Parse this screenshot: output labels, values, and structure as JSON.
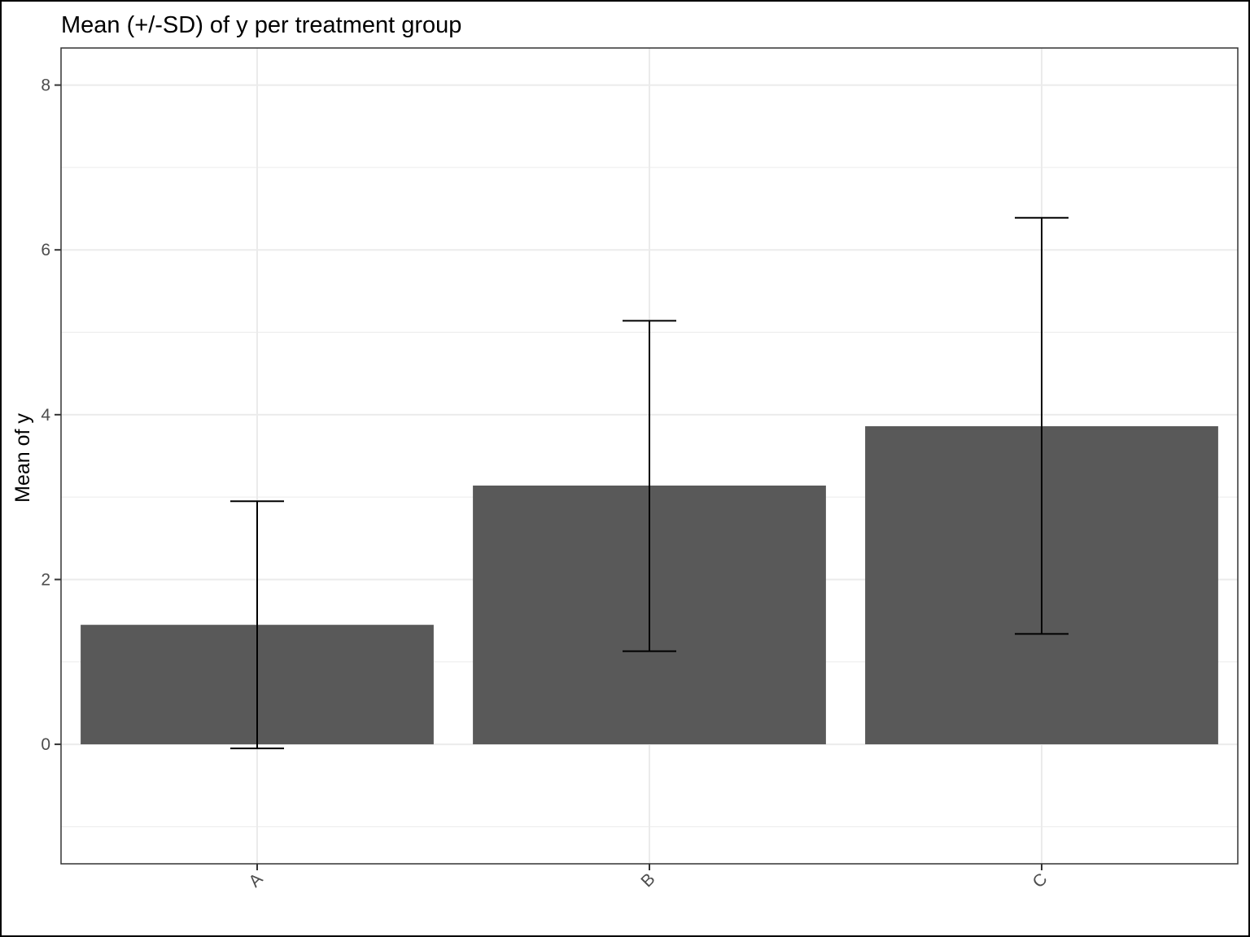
{
  "chart_data": {
    "type": "bar",
    "title": "Mean (+/-SD) of y per treatment group",
    "xlabel": "",
    "ylabel": "Mean of y",
    "categories": [
      "A",
      "B",
      "C"
    ],
    "values": [
      1.45,
      3.14,
      3.86
    ],
    "error_bars": {
      "lower": [
        -0.05,
        1.13,
        1.34
      ],
      "upper": [
        2.95,
        5.14,
        6.39
      ]
    },
    "ylim": [
      -1.45,
      8.45
    ],
    "yticks": [
      0,
      2,
      4,
      6,
      8
    ],
    "ytick_labels": [
      "0",
      "2",
      "4",
      "6",
      "8"
    ],
    "grid": true,
    "colors": {
      "bar": "#595959",
      "errorbar": "#000000",
      "grid": "#ebebeb",
      "panel_border": "#333333",
      "tick_text": "#4d4d4d"
    }
  }
}
